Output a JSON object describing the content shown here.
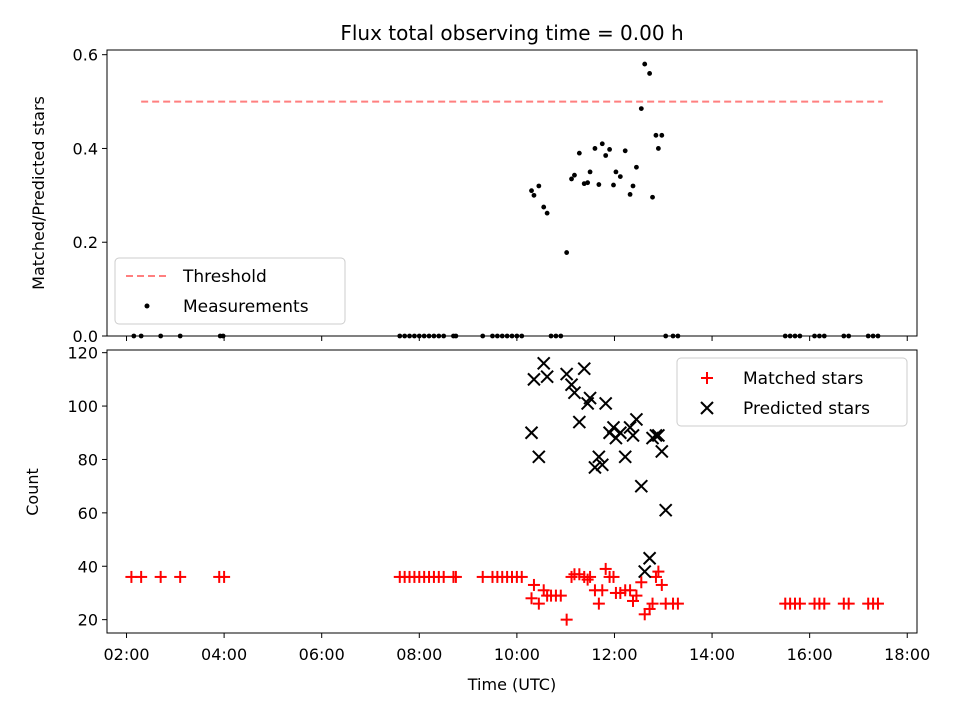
{
  "figure": {
    "title": "Flux total observing time = 0.00 h",
    "xlabel": "Time (UTC)"
  },
  "colors": {
    "threshold": "#ff7f7f",
    "measurements": "#000000",
    "matched": "#ff0000",
    "predicted": "#000000"
  },
  "chart_data": [
    {
      "type": "scatter",
      "panel": "top",
      "title": "Flux total observing time = 0.00 h",
      "ylabel": "Matched/Predicted stars",
      "xlabel": "",
      "x_unit": "hours UTC",
      "xlim": [
        1.6,
        18.2
      ],
      "ylim": [
        0,
        0.61
      ],
      "yticks": [
        0.0,
        0.2,
        0.4,
        0.6
      ],
      "ytick_labels": [
        "0.0",
        "0.2",
        "0.4",
        "0.6"
      ],
      "legend_position": "lower-left",
      "legend": [
        "Threshold",
        "Measurements"
      ],
      "series": [
        {
          "name": "Threshold",
          "style": "dashed-line",
          "x": [
            2.3,
            17.5
          ],
          "y": [
            0.5,
            0.5
          ]
        },
        {
          "name": "Measurements",
          "style": "dot",
          "x": [
            2.15,
            2.3,
            2.7,
            3.1,
            3.92,
            3.98,
            7.6,
            7.7,
            7.8,
            7.9,
            8.0,
            8.1,
            8.2,
            8.3,
            8.4,
            8.5,
            8.7,
            8.75,
            9.3,
            9.5,
            9.6,
            9.7,
            9.8,
            9.9,
            10.0,
            10.1,
            10.3,
            10.35,
            10.45,
            10.55,
            10.62,
            10.7,
            10.8,
            10.9,
            11.02,
            11.12,
            11.18,
            11.28,
            11.38,
            11.45,
            11.5,
            11.6,
            11.68,
            11.75,
            11.82,
            11.9,
            11.98,
            12.03,
            12.12,
            12.22,
            12.32,
            12.38,
            12.45,
            12.55,
            12.62,
            12.72,
            12.78,
            12.85,
            12.9,
            12.97,
            13.05,
            13.2,
            13.3,
            15.5,
            15.6,
            15.7,
            15.8,
            16.1,
            16.2,
            16.3,
            16.7,
            16.8,
            17.2,
            17.3,
            17.4
          ],
          "y": [
            0,
            0,
            0,
            0,
            0,
            0,
            0,
            0,
            0,
            0,
            0,
            0,
            0,
            0,
            0,
            0,
            0,
            0,
            0,
            0,
            0,
            0,
            0,
            0,
            0,
            0,
            0.31,
            0.3,
            0.32,
            0.275,
            0.262,
            0,
            0,
            0,
            0.178,
            0.335,
            0.343,
            0.39,
            0.325,
            0.327,
            0.35,
            0.4,
            0.323,
            0.41,
            0.385,
            0.398,
            0.322,
            0.35,
            0.34,
            0.395,
            0.302,
            0.32,
            0.36,
            0.485,
            0.58,
            0.56,
            0.296,
            0.428,
            0.4,
            0.428,
            0,
            0,
            0,
            0,
            0,
            0,
            0,
            0,
            0,
            0,
            0,
            0,
            0,
            0,
            0
          ]
        }
      ]
    },
    {
      "type": "scatter",
      "panel": "bottom",
      "title": "",
      "ylabel": "Count",
      "xlabel": "Time (UTC)",
      "x_unit": "hours UTC",
      "xlim": [
        1.6,
        18.2
      ],
      "ylim": [
        15,
        121
      ],
      "yticks": [
        20,
        40,
        60,
        80,
        100,
        120
      ],
      "ytick_labels": [
        "20",
        "40",
        "60",
        "80",
        "100",
        "120"
      ],
      "xticks": [
        2,
        4,
        6,
        8,
        10,
        12,
        14,
        16,
        18
      ],
      "xtick_labels": [
        "02:00",
        "04:00",
        "06:00",
        "08:00",
        "10:00",
        "12:00",
        "14:00",
        "16:00",
        "18:00"
      ],
      "legend_position": "top-right",
      "legend": [
        "Matched stars",
        "Predicted stars"
      ],
      "series": [
        {
          "name": "Matched stars",
          "marker": "plus",
          "x": [
            2.1,
            2.3,
            2.7,
            3.1,
            3.9,
            4.0,
            7.6,
            7.7,
            7.8,
            7.9,
            8.0,
            8.1,
            8.2,
            8.3,
            8.4,
            8.5,
            8.7,
            8.75,
            9.3,
            9.5,
            9.6,
            9.7,
            9.8,
            9.9,
            10.0,
            10.1,
            10.3,
            10.35,
            10.45,
            10.55,
            10.62,
            10.7,
            10.8,
            10.9,
            11.02,
            11.12,
            11.18,
            11.28,
            11.38,
            11.45,
            11.5,
            11.6,
            11.68,
            11.75,
            11.82,
            11.9,
            11.98,
            12.03,
            12.12,
            12.22,
            12.32,
            12.38,
            12.45,
            12.55,
            12.62,
            12.72,
            12.78,
            12.85,
            12.9,
            12.97,
            13.05,
            13.2,
            13.3,
            15.5,
            15.6,
            15.7,
            15.8,
            16.1,
            16.2,
            16.3,
            16.7,
            16.8,
            17.2,
            17.3,
            17.4
          ],
          "y": [
            36,
            36,
            36,
            36,
            36,
            36,
            36,
            36,
            36,
            36,
            36,
            36,
            36,
            36,
            36,
            36,
            36,
            36,
            36,
            36,
            36,
            36,
            36,
            36,
            36,
            36,
            28,
            33,
            26,
            31,
            29,
            29,
            29,
            29,
            20,
            36,
            37,
            37,
            36,
            35,
            36,
            31,
            26,
            31,
            39,
            36,
            36,
            30,
            30,
            31,
            31,
            27,
            29,
            34,
            22,
            24,
            26,
            36,
            38,
            33,
            26,
            26,
            26,
            26,
            26,
            26,
            26,
            26,
            26,
            26,
            26,
            26,
            26,
            26,
            26
          ]
        },
        {
          "name": "Predicted stars",
          "marker": "x",
          "x": [
            10.3,
            10.35,
            10.45,
            10.55,
            10.62,
            11.02,
            11.12,
            11.18,
            11.28,
            11.38,
            11.45,
            11.5,
            11.6,
            11.68,
            11.75,
            11.82,
            11.9,
            11.98,
            12.03,
            12.12,
            12.22,
            12.32,
            12.38,
            12.45,
            12.55,
            12.62,
            12.72,
            12.78,
            12.85,
            12.9,
            12.97,
            13.05
          ],
          "y": [
            90,
            110,
            81,
            116,
            111,
            112,
            108,
            105,
            94,
            114,
            101,
            103,
            77,
            81,
            78,
            101,
            90,
            92,
            88,
            90,
            81,
            92,
            89,
            95,
            70,
            38,
            43,
            88,
            89,
            89,
            83,
            61
          ]
        }
      ]
    }
  ]
}
